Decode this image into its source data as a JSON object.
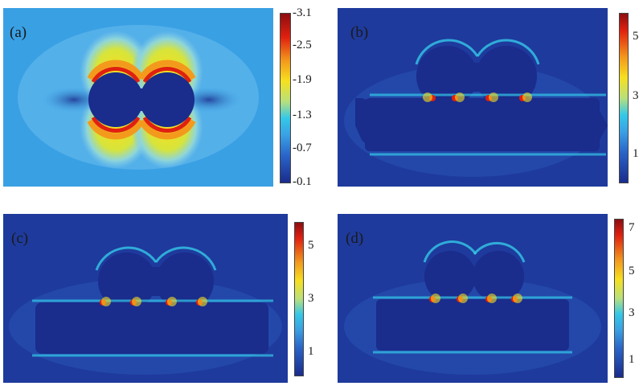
{
  "panels": [
    {
      "id": "a",
      "label": "(a)",
      "colorbar_ticks": [
        "3.1",
        "2.5",
        "1.9",
        "1.3",
        "0.7",
        "0.1"
      ],
      "tick_prefix": "-"
    },
    {
      "id": "b",
      "label": "(b)",
      "colorbar_ticks": [
        "5",
        "3",
        "1"
      ],
      "tick_prefix": ""
    },
    {
      "id": "c",
      "label": "(c)",
      "colorbar_ticks": [
        "5",
        "3",
        "1"
      ],
      "tick_prefix": ""
    },
    {
      "id": "d",
      "label": "(d)",
      "colorbar_ticks": [
        "7",
        "5",
        "3",
        "1"
      ],
      "tick_prefix": ""
    }
  ],
  "colors": {
    "dark_blue": "#1a2c8c",
    "light_blue": "#3aa0e4",
    "cyan": "#34c8e8",
    "yellow": "#f6e020",
    "orange": "#f39a1c",
    "red": "#e02010",
    "dark_red": "#8c0e10"
  }
}
